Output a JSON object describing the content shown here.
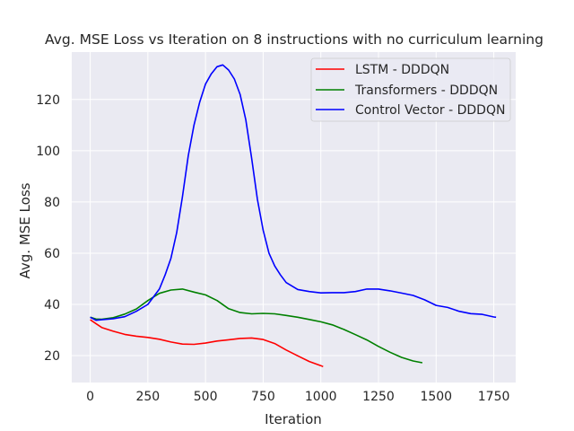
{
  "chart_data": {
    "type": "line",
    "title": "Avg. MSE Loss vs Iteration on 8 instructions with no curriculum learning",
    "xlabel": "Iteration",
    "ylabel": "Avg. MSE Loss",
    "xlim": [
      -80,
      1845
    ],
    "ylim": [
      9.5,
      138.5
    ],
    "xticks": [
      0,
      250,
      500,
      750,
      1000,
      1250,
      1500,
      1750
    ],
    "yticks": [
      20,
      40,
      60,
      80,
      100,
      120
    ],
    "grid": true,
    "legend_position": "top-right",
    "series": [
      {
        "name": "LSTM - DDDQN",
        "color": "#ff0000",
        "x": [
          0,
          25,
          50,
          100,
          150,
          200,
          250,
          300,
          350,
          400,
          450,
          500,
          550,
          600,
          650,
          700,
          750,
          800,
          850,
          900,
          950,
          1000,
          1010
        ],
        "y": [
          34,
          32.5,
          31,
          29.5,
          28.3,
          27.6,
          27.1,
          26.4,
          25.3,
          24.5,
          24.4,
          24.9,
          25.7,
          26.2,
          26.7,
          26.9,
          26.3,
          24.7,
          22.2,
          19.9,
          17.7,
          16.1,
          15.7
        ]
      },
      {
        "name": "Transformers - DDDQN",
        "color": "#008000",
        "x": [
          0,
          25,
          50,
          100,
          150,
          200,
          250,
          300,
          350,
          400,
          450,
          500,
          550,
          600,
          650,
          700,
          750,
          800,
          850,
          900,
          950,
          1000,
          1050,
          1100,
          1150,
          1200,
          1250,
          1300,
          1350,
          1400,
          1440
        ],
        "y": [
          35,
          34.3,
          34.2,
          34.8,
          36.2,
          38.2,
          41.5,
          44.3,
          45.6,
          46.0,
          44.8,
          43.7,
          41.5,
          38.3,
          36.8,
          36.3,
          36.5,
          36.3,
          35.7,
          35.0,
          34.1,
          33.2,
          32.0,
          30.2,
          28.2,
          26.1,
          23.6,
          21.3,
          19.3,
          17.9,
          17.2
        ]
      },
      {
        "name": "Control Vector - DDDQN",
        "color": "#0000ff",
        "x": [
          0,
          25,
          50,
          100,
          150,
          200,
          250,
          300,
          325,
          350,
          375,
          400,
          425,
          450,
          475,
          500,
          525,
          550,
          575,
          600,
          625,
          650,
          675,
          700,
          725,
          750,
          775,
          800,
          825,
          850,
          900,
          950,
          1000,
          1050,
          1100,
          1150,
          1200,
          1250,
          1300,
          1350,
          1400,
          1450,
          1500,
          1550,
          1600,
          1650,
          1700,
          1750,
          1760
        ],
        "y": [
          35,
          33.8,
          34.0,
          34.4,
          35.2,
          37.3,
          40.0,
          46.0,
          51.5,
          58.0,
          68.0,
          82.0,
          98.0,
          110.0,
          119.0,
          126.0,
          130.0,
          132.8,
          133.5,
          131.5,
          128.0,
          122.0,
          112.0,
          97.0,
          81.0,
          69.0,
          60.0,
          55.0,
          51.5,
          48.5,
          45.8,
          45.0,
          44.5,
          44.6,
          44.6,
          45.0,
          46.0,
          46.0,
          45.3,
          44.4,
          43.5,
          41.8,
          39.6,
          38.8,
          37.3,
          36.4,
          36.1,
          35.1,
          35.0
        ]
      }
    ]
  }
}
